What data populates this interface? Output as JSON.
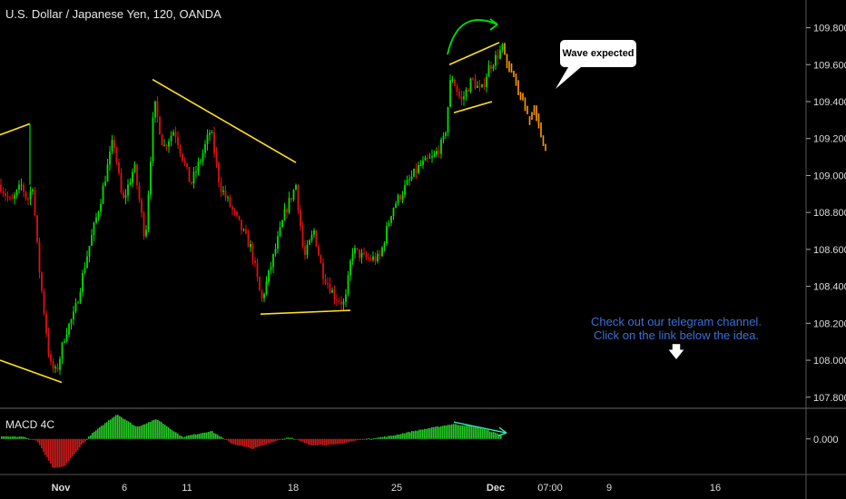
{
  "header": {
    "title": "U.S. Dollar / Japanese Yen, 120, OANDA"
  },
  "macd_label": "MACD 4C",
  "callout": "Wave expected",
  "note": {
    "line1": "Check out our telegram channel.",
    "line2": "Click on the link below the idea."
  },
  "colors": {
    "up": "#00e000",
    "down": "#e01010",
    "projection": "#ff9900",
    "trend": "#ffe11a",
    "macd_up": "#26c826",
    "macd_down": "#c81a1a"
  },
  "chart_data": {
    "type": "candlestick",
    "ylim": [
      107.74,
      109.95
    ],
    "yticks": [
      109.8,
      109.6,
      109.4,
      109.2,
      109.0,
      108.8,
      108.6,
      108.4,
      108.2,
      108.0,
      107.8
    ],
    "ytick_labels": [
      "109.800",
      "109.600",
      "109.400",
      "109.200",
      "109.000",
      "108.800",
      "108.600",
      "108.400",
      "108.200",
      "108.000",
      "107.800"
    ],
    "xticks": [
      {
        "label": "Nov",
        "bold": true
      },
      {
        "label": "6",
        "bold": false
      },
      {
        "label": "11",
        "bold": false
      },
      {
        "label": "18",
        "bold": false
      },
      {
        "label": "25",
        "bold": false
      },
      {
        "label": "Dec",
        "bold": true
      },
      {
        "label": "07:00",
        "bold": false
      },
      {
        "label": "9",
        "bold": false
      },
      {
        "label": "16",
        "bold": false
      }
    ],
    "anchors": [
      [
        0,
        108.95
      ],
      [
        12,
        108.85
      ],
      [
        24,
        108.95
      ],
      [
        30,
        108.86
      ],
      [
        36,
        108.95
      ],
      [
        42,
        108.55
      ],
      [
        50,
        108.2
      ],
      [
        55,
        107.98
      ],
      [
        62,
        107.93
      ],
      [
        72,
        108.15
      ],
      [
        82,
        108.25
      ],
      [
        95,
        108.55
      ],
      [
        110,
        108.85
      ],
      [
        125,
        109.2
      ],
      [
        135,
        108.85
      ],
      [
        148,
        109.05
      ],
      [
        160,
        108.65
      ],
      [
        170,
        109.4
      ],
      [
        180,
        109.15
      ],
      [
        192,
        109.25
      ],
      [
        210,
        108.95
      ],
      [
        222,
        109.1
      ],
      [
        232,
        109.25
      ],
      [
        242,
        108.95
      ],
      [
        262,
        108.75
      ],
      [
        277,
        108.6
      ],
      [
        288,
        108.32
      ],
      [
        298,
        108.5
      ],
      [
        314,
        108.8
      ],
      [
        326,
        108.95
      ],
      [
        335,
        108.55
      ],
      [
        346,
        108.7
      ],
      [
        355,
        108.48
      ],
      [
        368,
        108.35
      ],
      [
        380,
        108.3
      ],
      [
        388,
        108.6
      ],
      [
        402,
        108.55
      ],
      [
        418,
        108.55
      ],
      [
        432,
        108.82
      ],
      [
        448,
        108.95
      ],
      [
        462,
        109.05
      ],
      [
        478,
        109.1
      ],
      [
        490,
        109.2
      ],
      [
        497,
        109.55
      ],
      [
        508,
        109.4
      ],
      [
        520,
        109.52
      ],
      [
        530,
        109.45
      ],
      [
        538,
        109.58
      ],
      [
        548,
        109.65
      ],
      [
        555,
        109.7
      ]
    ],
    "projection": [
      [
        555,
        109.7
      ],
      [
        560,
        109.6
      ],
      [
        566,
        109.55
      ],
      [
        572,
        109.45
      ],
      [
        578,
        109.4
      ],
      [
        584,
        109.3
      ],
      [
        590,
        109.35
      ],
      [
        596,
        109.25
      ],
      [
        603,
        109.1
      ]
    ],
    "trendlines": [
      {
        "from": [
          0,
          109.22
        ],
        "to": [
          33,
          109.28
        ]
      },
      {
        "from": [
          0,
          108.0
        ],
        "to": [
          68,
          107.88
        ]
      },
      {
        "from": [
          168,
          109.52
        ],
        "to": [
          326,
          109.07
        ]
      },
      {
        "from": [
          287,
          108.25
        ],
        "to": [
          386,
          108.27
        ]
      },
      {
        "from": [
          495,
          109.6
        ],
        "to": [
          550,
          109.72
        ]
      },
      {
        "from": [
          500,
          109.34
        ],
        "to": [
          542,
          109.4
        ]
      }
    ],
    "macd": {
      "ylim": [
        -0.35,
        0.3
      ],
      "zero_label": "0.000",
      "anchors": [
        [
          0,
          0.03
        ],
        [
          25,
          0.02
        ],
        [
          40,
          -0.02
        ],
        [
          58,
          -0.3
        ],
        [
          70,
          -0.28
        ],
        [
          90,
          -0.05
        ],
        [
          100,
          0.05
        ],
        [
          128,
          0.25
        ],
        [
          150,
          0.12
        ],
        [
          172,
          0.2
        ],
        [
          200,
          0.02
        ],
        [
          232,
          0.08
        ],
        [
          255,
          -0.05
        ],
        [
          278,
          -0.1
        ],
        [
          300,
          -0.03
        ],
        [
          318,
          0.02
        ],
        [
          340,
          -0.06
        ],
        [
          368,
          -0.06
        ],
        [
          395,
          -0.01
        ],
        [
          430,
          0.03
        ],
        [
          455,
          0.08
        ],
        [
          498,
          0.15
        ],
        [
          525,
          0.12
        ],
        [
          552,
          0.04
        ]
      ],
      "arrow": {
        "from": [
          500,
          0.17
        ],
        "to": [
          558,
          0.06
        ]
      }
    }
  }
}
